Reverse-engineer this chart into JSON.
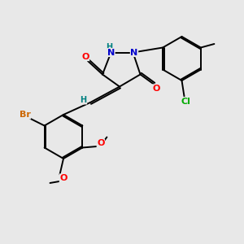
{
  "bg_color": "#e8e8e8",
  "atom_colors": {
    "O": "#ff0000",
    "N": "#0000cc",
    "Br": "#cc6600",
    "Cl": "#00aa00",
    "C": "#000000",
    "H": "#008080"
  }
}
